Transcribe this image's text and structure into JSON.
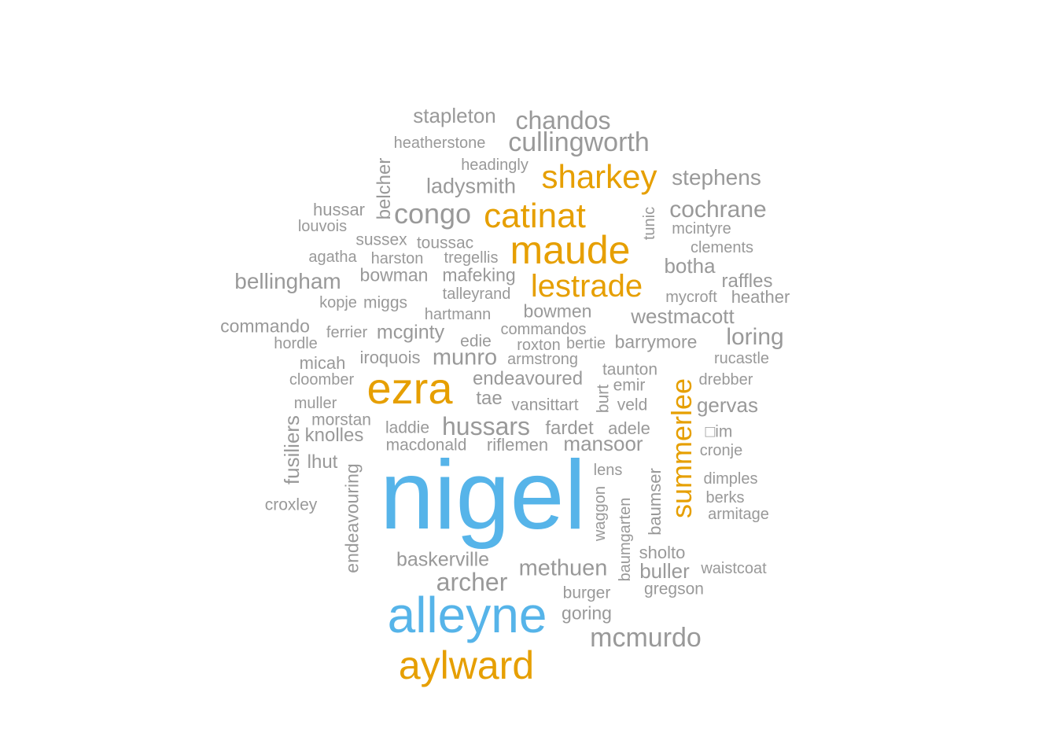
{
  "colors": {
    "grey": "#999999",
    "orange": "#E69F00",
    "blue": "#56B4E9"
  },
  "words": [
    {
      "text": "nigel",
      "color": "blue"
    },
    {
      "text": "alleyne",
      "color": "blue"
    },
    {
      "text": "aylward",
      "color": "orange"
    },
    {
      "text": "ezra",
      "color": "orange"
    },
    {
      "text": "maude",
      "color": "orange"
    },
    {
      "text": "catinat",
      "color": "orange"
    },
    {
      "text": "sharkey",
      "color": "orange"
    },
    {
      "text": "lestrade",
      "color": "orange"
    },
    {
      "text": "summerlee",
      "color": "orange"
    },
    {
      "text": "stapleton",
      "color": "grey"
    },
    {
      "text": "chandos",
      "color": "grey"
    },
    {
      "text": "cullingworth",
      "color": "grey"
    },
    {
      "text": "heatherstone",
      "color": "grey"
    },
    {
      "text": "headingly",
      "color": "grey"
    },
    {
      "text": "stephens",
      "color": "grey"
    },
    {
      "text": "belcher",
      "color": "grey"
    },
    {
      "text": "ladysmith",
      "color": "grey"
    },
    {
      "text": "hussar",
      "color": "grey"
    },
    {
      "text": "congo",
      "color": "grey"
    },
    {
      "text": "cochrane",
      "color": "grey"
    },
    {
      "text": "tunic",
      "color": "grey"
    },
    {
      "text": "louvois",
      "color": "grey"
    },
    {
      "text": "mcintyre",
      "color": "grey"
    },
    {
      "text": "sussex",
      "color": "grey"
    },
    {
      "text": "toussac",
      "color": "grey"
    },
    {
      "text": "clements",
      "color": "grey"
    },
    {
      "text": "agatha",
      "color": "grey"
    },
    {
      "text": "harston",
      "color": "grey"
    },
    {
      "text": "tregellis",
      "color": "grey"
    },
    {
      "text": "botha",
      "color": "grey"
    },
    {
      "text": "bellingham",
      "color": "grey"
    },
    {
      "text": "bowman",
      "color": "grey"
    },
    {
      "text": "mafeking",
      "color": "grey"
    },
    {
      "text": "raffles",
      "color": "grey"
    },
    {
      "text": "talleyrand",
      "color": "grey"
    },
    {
      "text": "mycroft",
      "color": "grey"
    },
    {
      "text": "heather",
      "color": "grey"
    },
    {
      "text": "kopje",
      "color": "grey"
    },
    {
      "text": "miggs",
      "color": "grey"
    },
    {
      "text": "bowmen",
      "color": "grey"
    },
    {
      "text": "hartmann",
      "color": "grey"
    },
    {
      "text": "westmacott",
      "color": "grey"
    },
    {
      "text": "commando",
      "color": "grey"
    },
    {
      "text": "ferrier",
      "color": "grey"
    },
    {
      "text": "mcginty",
      "color": "grey"
    },
    {
      "text": "commandos",
      "color": "grey"
    },
    {
      "text": "hordle",
      "color": "grey"
    },
    {
      "text": "edie",
      "color": "grey"
    },
    {
      "text": "roxton",
      "color": "grey"
    },
    {
      "text": "bertie",
      "color": "grey"
    },
    {
      "text": "barrymore",
      "color": "grey"
    },
    {
      "text": "loring",
      "color": "grey"
    },
    {
      "text": "iroquois",
      "color": "grey"
    },
    {
      "text": "munro",
      "color": "grey"
    },
    {
      "text": "armstrong",
      "color": "grey"
    },
    {
      "text": "rucastle",
      "color": "grey"
    },
    {
      "text": "micah",
      "color": "grey"
    },
    {
      "text": "taunton",
      "color": "grey"
    },
    {
      "text": "cloomber",
      "color": "grey"
    },
    {
      "text": "endeavoured",
      "color": "grey"
    },
    {
      "text": "emir",
      "color": "grey"
    },
    {
      "text": "drebber",
      "color": "grey"
    },
    {
      "text": "burt",
      "color": "grey"
    },
    {
      "text": "muller",
      "color": "grey"
    },
    {
      "text": "tae",
      "color": "grey"
    },
    {
      "text": "vansittart",
      "color": "grey"
    },
    {
      "text": "veld",
      "color": "grey"
    },
    {
      "text": "gervas",
      "color": "grey"
    },
    {
      "text": "morstan",
      "color": "grey"
    },
    {
      "text": "fusiliers",
      "color": "grey"
    },
    {
      "text": "laddie",
      "color": "grey"
    },
    {
      "text": "hussars",
      "color": "grey"
    },
    {
      "text": "fardet",
      "color": "grey"
    },
    {
      "text": "adele",
      "color": "grey"
    },
    {
      "text": "□im",
      "color": "grey"
    },
    {
      "text": "knolles",
      "color": "grey"
    },
    {
      "text": "macdonald",
      "color": "grey"
    },
    {
      "text": "riflemen",
      "color": "grey"
    },
    {
      "text": "mansoor",
      "color": "grey"
    },
    {
      "text": "cronje",
      "color": "grey"
    },
    {
      "text": "lhut",
      "color": "grey"
    },
    {
      "text": "lens",
      "color": "grey"
    },
    {
      "text": "baumser",
      "color": "grey"
    },
    {
      "text": "dimples",
      "color": "grey"
    },
    {
      "text": "endeavouring",
      "color": "grey"
    },
    {
      "text": "croxley",
      "color": "grey"
    },
    {
      "text": "waggon",
      "color": "grey"
    },
    {
      "text": "berks",
      "color": "grey"
    },
    {
      "text": "armitage",
      "color": "grey"
    },
    {
      "text": "baumgarten",
      "color": "grey"
    },
    {
      "text": "sholto",
      "color": "grey"
    },
    {
      "text": "baskerville",
      "color": "grey"
    },
    {
      "text": "methuen",
      "color": "grey"
    },
    {
      "text": "buller",
      "color": "grey"
    },
    {
      "text": "waistcoat",
      "color": "grey"
    },
    {
      "text": "archer",
      "color": "grey"
    },
    {
      "text": "burger",
      "color": "grey"
    },
    {
      "text": "gregson",
      "color": "grey"
    },
    {
      "text": "goring",
      "color": "grey"
    },
    {
      "text": "mcmurdo",
      "color": "grey"
    }
  ]
}
